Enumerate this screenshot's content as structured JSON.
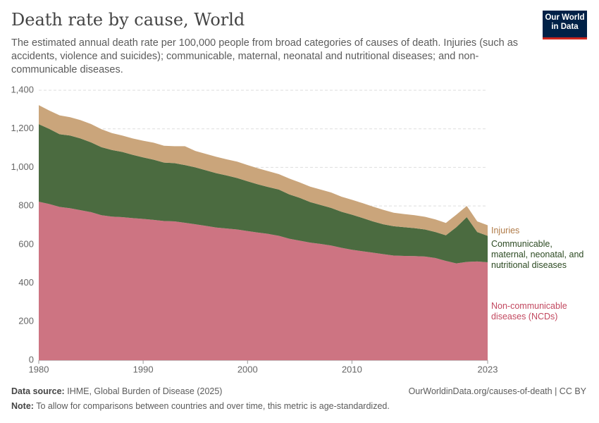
{
  "chart_data": {
    "type": "stacked-area",
    "title": "Death rate by cause, World",
    "subtitle": "The estimated annual death rate per 100,000 people from broad categories of causes of death. Injuries (such as accidents, violence and suicides); communicable, maternal, neonatal and nutritional diseases; and non-communicable diseases.",
    "logo": "Our World in Data",
    "source": {
      "label": "Data source:",
      "text": "IHME, Global Burden of Disease (2025)"
    },
    "url": "OurWorldinData.org/causes-of-death | CC BY",
    "note": {
      "label": "Note:",
      "text": "To allow for comparisons between countries and over time, this metric is age-standardized."
    },
    "x": [
      1980,
      1981,
      1982,
      1983,
      1984,
      1985,
      1986,
      1987,
      1988,
      1989,
      1990,
      1991,
      1992,
      1993,
      1994,
      1995,
      1996,
      1997,
      1998,
      1999,
      2000,
      2001,
      2002,
      2003,
      2004,
      2005,
      2006,
      2007,
      2008,
      2009,
      2010,
      2011,
      2012,
      2013,
      2014,
      2015,
      2016,
      2017,
      2018,
      2019,
      2020,
      2021,
      2022,
      2023
    ],
    "xlim": [
      1980,
      2023
    ],
    "xticks": [
      1980,
      1990,
      2000,
      2010,
      2023
    ],
    "ylim": [
      0,
      1400
    ],
    "yticks": [
      0,
      200,
      400,
      600,
      800,
      {
        "value": 1000,
        "label": "1,000"
      },
      {
        "value": 1200,
        "label": "1,200"
      },
      {
        "value": 1400,
        "label": "1,400"
      }
    ],
    "grid": true,
    "series": [
      {
        "name": "Non-communicable diseases (NCDs)",
        "color": "#cd7482",
        "label_color": "#c2485f",
        "values": [
          822,
          810,
          795,
          788,
          778,
          768,
          752,
          745,
          742,
          737,
          733,
          728,
          722,
          720,
          713,
          705,
          697,
          688,
          683,
          678,
          670,
          662,
          655,
          645,
          630,
          620,
          610,
          603,
          595,
          583,
          573,
          565,
          558,
          550,
          543,
          541,
          540,
          538,
          530,
          515,
          502,
          510,
          512,
          508
        ]
      },
      {
        "name": "Communicable, maternal, neonatal, and nutritional diseases",
        "color": "#4b6b40",
        "label_color": "#2c4a22",
        "values": [
          402,
          390,
          377,
          377,
          372,
          362,
          353,
          345,
          338,
          328,
          319,
          312,
          303,
          302,
          299,
          295,
          288,
          282,
          275,
          267,
          258,
          250,
          243,
          240,
          230,
          222,
          210,
          202,
          195,
          187,
          182,
          173,
          162,
          155,
          152,
          149,
          145,
          140,
          135,
          133,
          188,
          232,
          153,
          137
        ]
      },
      {
        "name": "Injuries",
        "color": "#caa57b",
        "label_color": "#b07b48",
        "values": [
          99,
          95,
          98,
          95,
          95,
          95,
          93,
          88,
          85,
          85,
          86,
          88,
          87,
          88,
          98,
          85,
          85,
          85,
          84,
          85,
          84,
          83,
          82,
          80,
          82,
          80,
          80,
          80,
          80,
          78,
          77,
          77,
          77,
          75,
          70,
          68,
          67,
          66,
          65,
          64,
          65,
          58,
          55,
          55
        ]
      }
    ]
  }
}
